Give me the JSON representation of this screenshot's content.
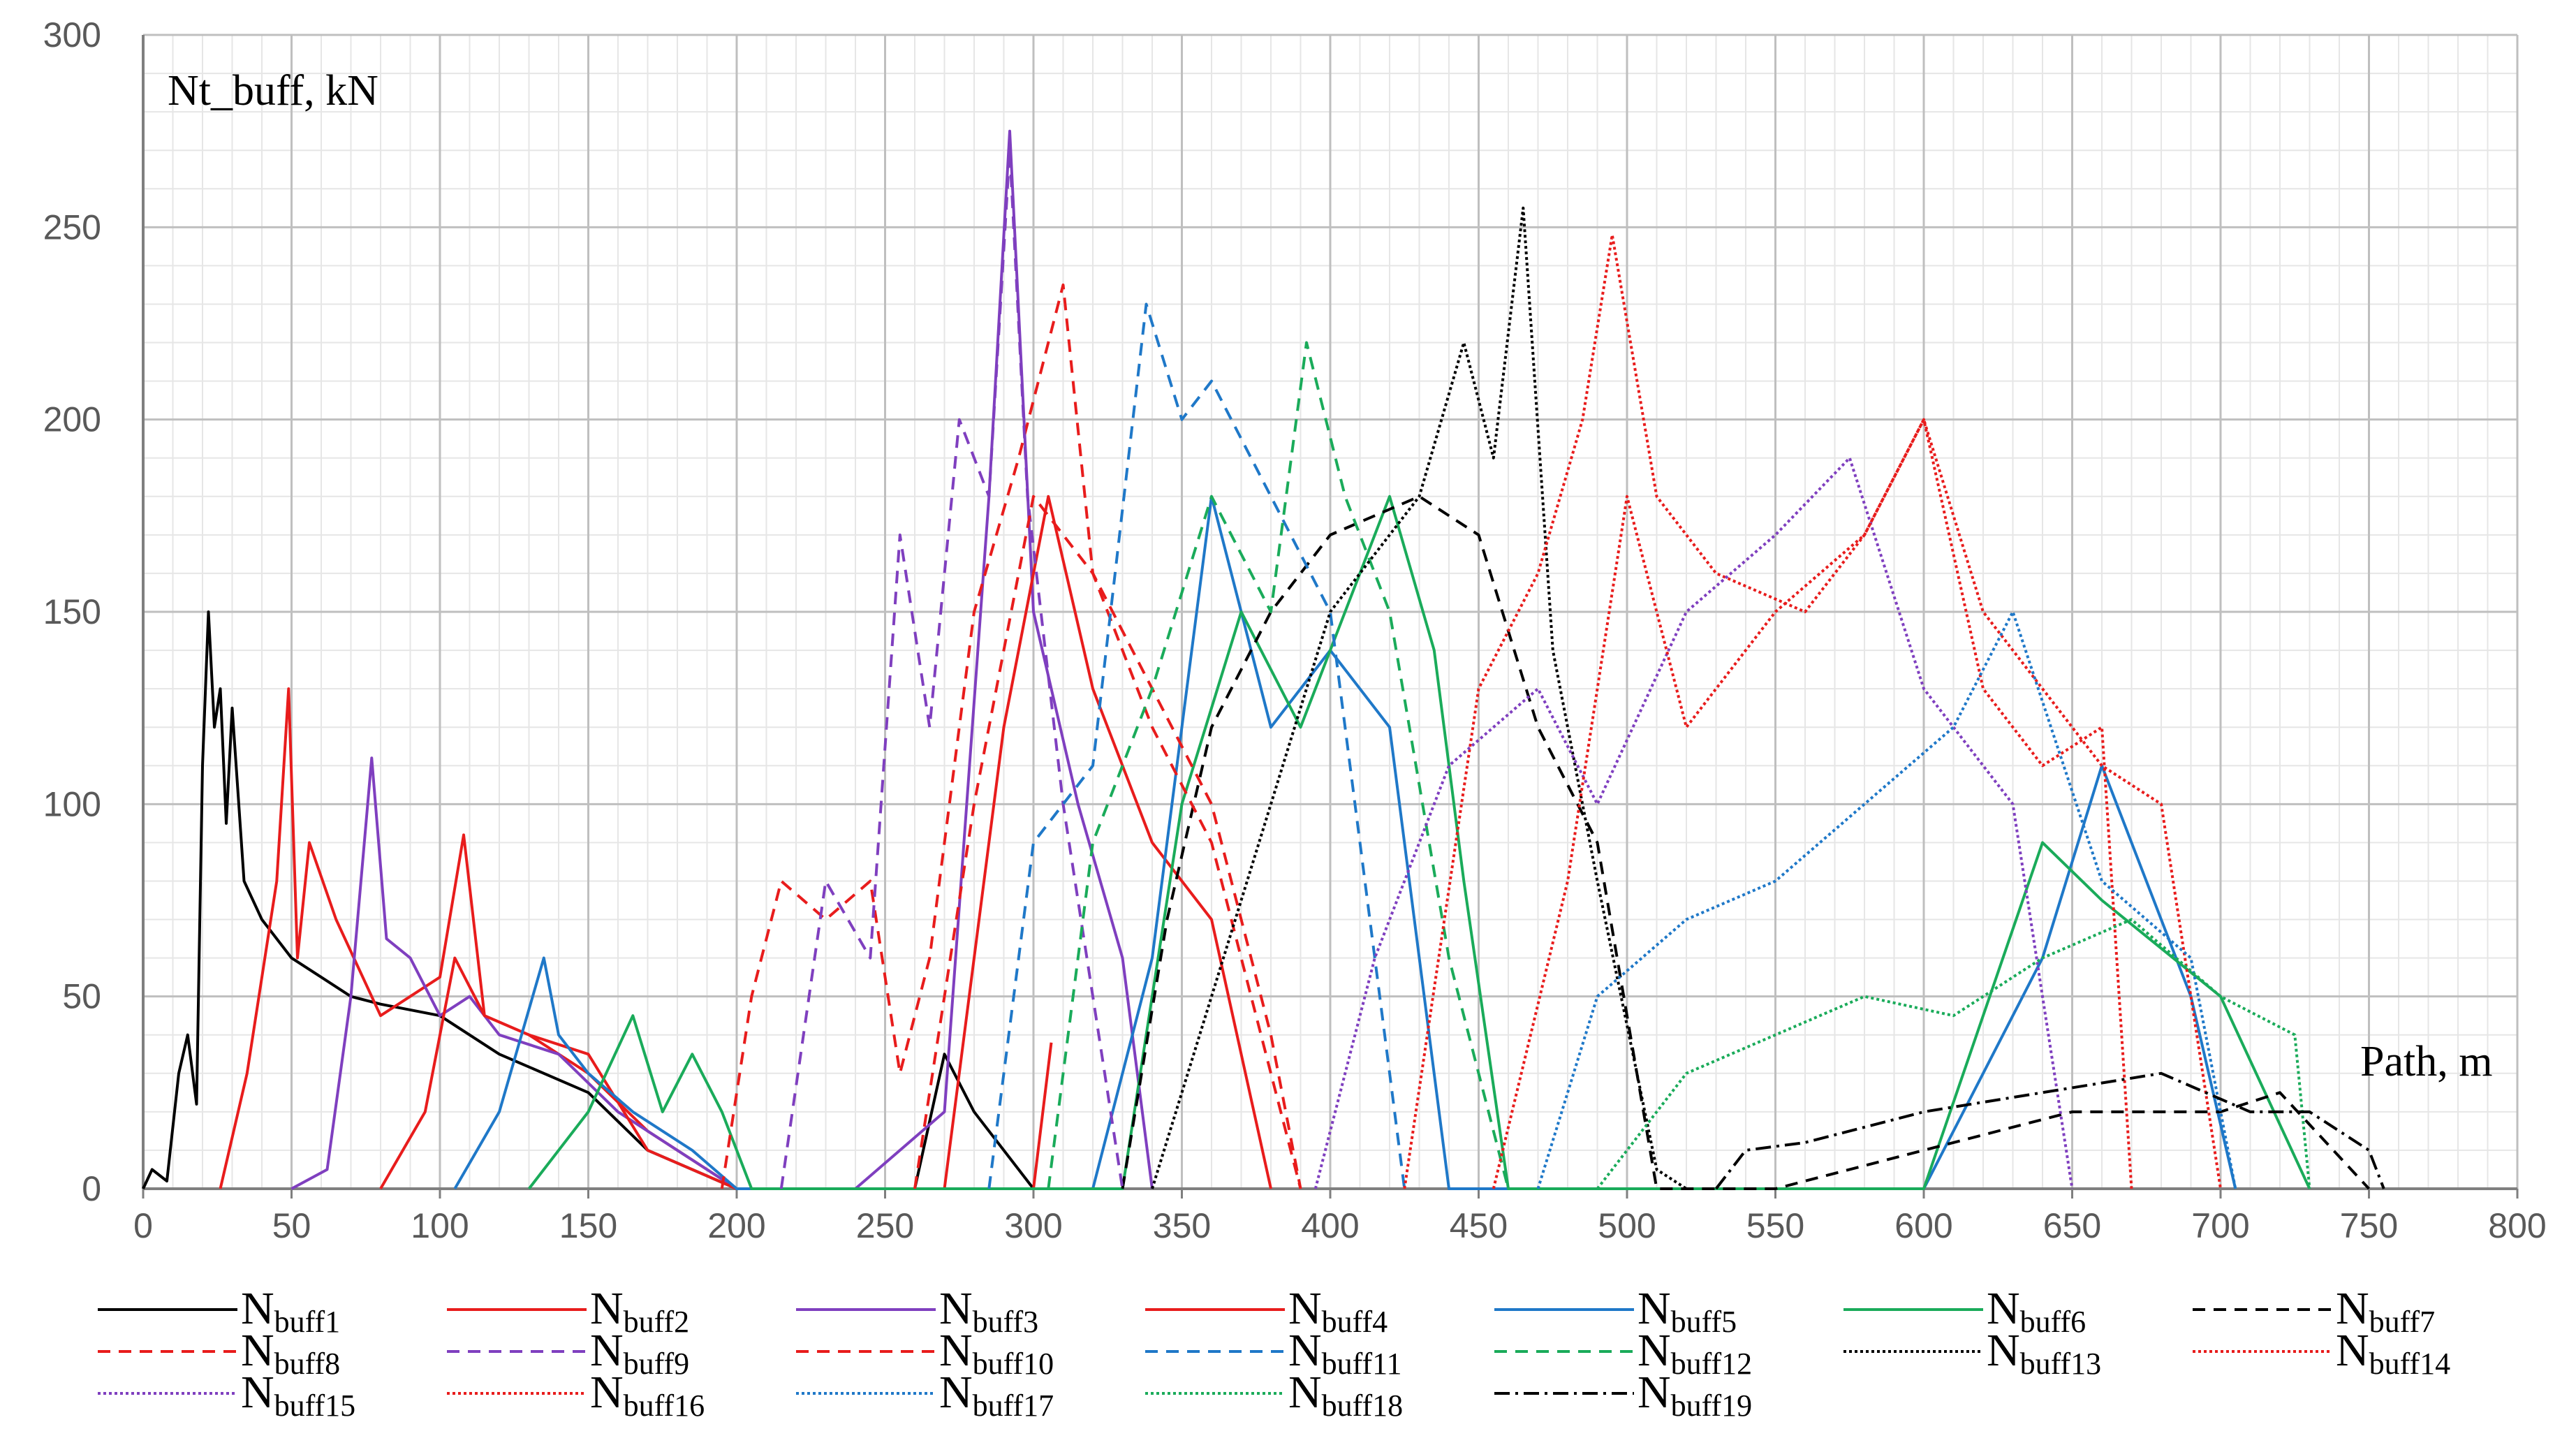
{
  "chart_data": {
    "type": "line",
    "ylabel": "Nt_buff, kN",
    "xlabel": "Path, m",
    "xlim": [
      0,
      800
    ],
    "ylim": [
      0,
      300
    ],
    "x_ticks": [
      0,
      50,
      100,
      150,
      200,
      250,
      300,
      350,
      400,
      450,
      500,
      550,
      600,
      650,
      700,
      750,
      800
    ],
    "y_ticks": [
      0,
      50,
      100,
      150,
      200,
      250,
      300
    ],
    "grid": true,
    "legend_placement": "bottom",
    "series": [
      {
        "name": "Nbuff1",
        "base": "N",
        "sub": "buff1",
        "color": "#000000",
        "dash": "solid",
        "x": [
          0,
          3,
          8,
          12,
          15,
          18,
          20,
          22,
          24,
          26,
          28,
          30,
          34,
          40,
          45,
          50,
          60,
          70,
          80,
          100,
          120,
          150,
          170,
          200,
          260,
          270,
          280,
          300
        ],
        "y": [
          0,
          5,
          2,
          30,
          40,
          22,
          110,
          150,
          120,
          130,
          95,
          125,
          80,
          70,
          65,
          60,
          55,
          50,
          48,
          45,
          35,
          25,
          10,
          0,
          0,
          35,
          20,
          0
        ]
      },
      {
        "name": "Nbuff2",
        "base": "N",
        "sub": "buff2",
        "color": "#e81c1c",
        "dash": "solid",
        "x": [
          26,
          35,
          45,
          49,
          52,
          56,
          65,
          80,
          100,
          108,
          115,
          130,
          150,
          170,
          200,
          250,
          300,
          306
        ],
        "y": [
          0,
          30,
          80,
          130,
          60,
          90,
          70,
          45,
          55,
          92,
          45,
          40,
          30,
          15,
          0,
          0,
          0,
          38
        ]
      },
      {
        "name": "Nbuff3",
        "base": "N",
        "sub": "buff3",
        "color": "#7f3fbf",
        "dash": "solid",
        "x": [
          50,
          62,
          70,
          77,
          82,
          90,
          100,
          110,
          120,
          140,
          160,
          200,
          240,
          270,
          285,
          292,
          300,
          315,
          330,
          340
        ],
        "y": [
          0,
          5,
          50,
          112,
          65,
          60,
          45,
          50,
          40,
          35,
          20,
          0,
          0,
          20,
          180,
          275,
          150,
          100,
          60,
          0
        ]
      },
      {
        "name": "Nbuff4",
        "base": "N",
        "sub": "buff4",
        "color": "#e81c1c",
        "dash": "solid",
        "x": [
          80,
          95,
          105,
          115,
          130,
          150,
          170,
          200,
          270,
          290,
          305,
          320,
          340,
          360,
          380
        ],
        "y": [
          0,
          20,
          60,
          45,
          40,
          35,
          10,
          0,
          0,
          120,
          180,
          130,
          90,
          70,
          0
        ]
      },
      {
        "name": "Nbuff5",
        "base": "N",
        "sub": "buff5",
        "color": "#1f78c8",
        "dash": "solid",
        "x": [
          105,
          120,
          135,
          140,
          150,
          165,
          185,
          200,
          320,
          340,
          360,
          380,
          400,
          420,
          440,
          600,
          640,
          660,
          690,
          705
        ],
        "y": [
          0,
          20,
          60,
          40,
          30,
          20,
          10,
          0,
          0,
          60,
          180,
          120,
          140,
          120,
          0,
          0,
          60,
          110,
          50,
          0
        ]
      },
      {
        "name": "Nbuff6",
        "base": "N",
        "sub": "buff6",
        "color": "#1aab5a",
        "dash": "solid",
        "x": [
          130,
          150,
          165,
          175,
          185,
          195,
          205,
          330,
          350,
          370,
          390,
          420,
          435,
          445,
          460,
          600,
          640,
          660,
          700,
          730
        ],
        "y": [
          0,
          20,
          45,
          20,
          35,
          20,
          0,
          0,
          100,
          150,
          120,
          180,
          140,
          80,
          0,
          0,
          90,
          75,
          50,
          0
        ]
      },
      {
        "name": "Nbuff7",
        "base": "N",
        "sub": "buff7",
        "color": "#000000",
        "dash": "18,12",
        "x": [
          330,
          345,
          360,
          380,
          400,
          430,
          450,
          470,
          490,
          510,
          550,
          600,
          650,
          700,
          720,
          750
        ],
        "y": [
          0,
          70,
          120,
          150,
          170,
          180,
          170,
          120,
          90,
          0,
          0,
          10,
          20,
          20,
          25,
          0
        ]
      },
      {
        "name": "Nbuff8",
        "base": "N",
        "sub": "buff8",
        "color": "#e81c1c",
        "dash": "18,12",
        "x": [
          195,
          205,
          215,
          230,
          245,
          255,
          265,
          280,
          295,
          310,
          320,
          340,
          360,
          380,
          390
        ],
        "y": [
          0,
          50,
          80,
          70,
          80,
          30,
          60,
          150,
          190,
          235,
          160,
          130,
          100,
          40,
          0
        ]
      },
      {
        "name": "Nbuff9",
        "base": "N",
        "sub": "buff9",
        "color": "#7f3fbf",
        "dash": "18,12",
        "x": [
          215,
          230,
          245,
          255,
          265,
          275,
          285,
          292,
          298,
          310,
          330
        ],
        "y": [
          0,
          80,
          60,
          170,
          120,
          200,
          180,
          270,
          180,
          100,
          0
        ]
      },
      {
        "name": "Nbuff10",
        "base": "N",
        "sub": "buff10",
        "color": "#e81c1c",
        "dash": "18,12",
        "x": [
          260,
          280,
          300,
          320,
          340,
          360,
          370,
          380,
          390
        ],
        "y": [
          0,
          100,
          180,
          160,
          120,
          90,
          60,
          30,
          0
        ]
      },
      {
        "name": "Nbuff11",
        "base": "N",
        "sub": "buff11",
        "color": "#1f78c8",
        "dash": "18,12",
        "x": [
          285,
          300,
          320,
          338,
          350,
          360,
          380,
          400,
          415,
          425
        ],
        "y": [
          0,
          90,
          110,
          230,
          200,
          210,
          180,
          150,
          60,
          0
        ]
      },
      {
        "name": "Nbuff12",
        "base": "N",
        "sub": "buff12",
        "color": "#1aab5a",
        "dash": "18,12",
        "x": [
          305,
          320,
          340,
          360,
          380,
          392,
          405,
          420,
          440,
          460
        ],
        "y": [
          0,
          90,
          130,
          180,
          150,
          220,
          180,
          150,
          60,
          0
        ]
      },
      {
        "name": "Nbuff13",
        "base": "N",
        "sub": "buff13",
        "color": "#000000",
        "dash": "4,4",
        "x": [
          340,
          360,
          380,
          400,
          430,
          445,
          455,
          465,
          475,
          490,
          510,
          520
        ],
        "y": [
          0,
          50,
          100,
          150,
          180,
          220,
          190,
          255,
          140,
          80,
          5,
          0
        ]
      },
      {
        "name": "Nbuff14",
        "base": "N",
        "sub": "buff14",
        "color": "#e81c1c",
        "dash": "4,4",
        "x": [
          425,
          450,
          470,
          485,
          495,
          510,
          530,
          560,
          580,
          600,
          620,
          640,
          660,
          680,
          700
        ],
        "y": [
          0,
          130,
          160,
          200,
          248,
          180,
          160,
          150,
          170,
          200,
          150,
          130,
          110,
          100,
          0
        ]
      },
      {
        "name": "Nbuff15",
        "base": "N",
        "sub": "buff15",
        "color": "#7f3fbf",
        "dash": "4,4",
        "x": [
          395,
          415,
          440,
          470,
          490,
          520,
          550,
          575,
          600,
          630,
          650
        ],
        "y": [
          0,
          60,
          110,
          130,
          100,
          150,
          170,
          190,
          130,
          100,
          0
        ]
      },
      {
        "name": "Nbuff16",
        "base": "N",
        "sub": "buff16",
        "color": "#e81c1c",
        "dash": "4,4",
        "x": [
          455,
          480,
          500,
          520,
          550,
          580,
          600,
          620,
          640,
          660,
          670
        ],
        "y": [
          0,
          80,
          180,
          120,
          150,
          170,
          200,
          130,
          110,
          120,
          0
        ]
      },
      {
        "name": "Nbuff17",
        "base": "N",
        "sub": "buff17",
        "color": "#1f78c8",
        "dash": "4,4",
        "x": [
          470,
          490,
          520,
          550,
          580,
          610,
          630,
          660,
          690,
          705
        ],
        "y": [
          0,
          50,
          70,
          80,
          100,
          120,
          150,
          80,
          60,
          0
        ]
      },
      {
        "name": "Nbuff18",
        "base": "N",
        "sub": "buff18",
        "color": "#1aab5a",
        "dash": "4,4",
        "x": [
          490,
          520,
          550,
          580,
          610,
          640,
          670,
          700,
          725,
          730
        ],
        "y": [
          0,
          30,
          40,
          50,
          45,
          60,
          70,
          50,
          40,
          0
        ]
      },
      {
        "name": "Nbuff19",
        "base": "N",
        "sub": "buff19",
        "color": "#000000",
        "dash": "22,8,4,8",
        "x": [
          530,
          540,
          560,
          600,
          640,
          680,
          710,
          730,
          750,
          755
        ],
        "y": [
          0,
          10,
          12,
          20,
          25,
          30,
          20,
          20,
          10,
          0
        ]
      }
    ]
  }
}
